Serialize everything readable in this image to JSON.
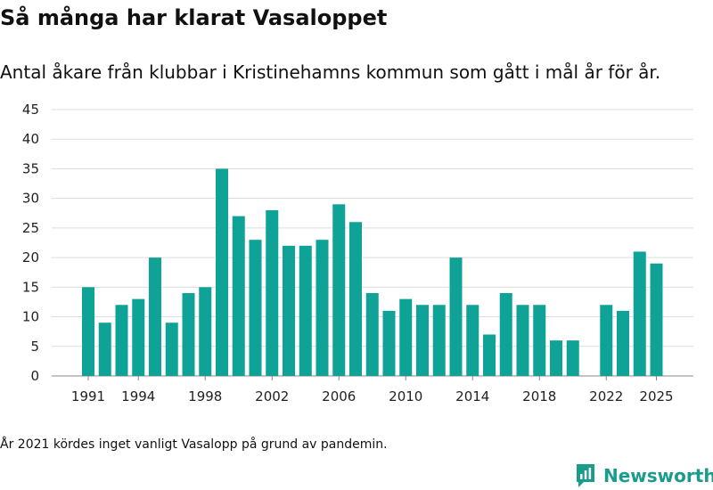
{
  "header": {
    "title": "Så många har klarat Vasaloppet",
    "subtitle": "Antal åkare från klubbar i Kristinehamns kommun som gått i mål år för år."
  },
  "footer": {
    "note": "År 2021 kördes inget vanligt Vasalopp på grund av pandemin.",
    "brand": "Newsworthy"
  },
  "colors": {
    "bar": "#0fa297",
    "grid": "#dddddd",
    "brand": "#1a9c8c"
  },
  "chart_data": {
    "type": "bar",
    "title": "Så många har klarat Vasaloppet",
    "xlabel": "",
    "ylabel": "",
    "ylim": [
      0,
      45
    ],
    "yticks": [
      0,
      5,
      10,
      15,
      20,
      25,
      30,
      35,
      40,
      45
    ],
    "xtick_labels": [
      "1991",
      "1994",
      "1998",
      "2002",
      "2006",
      "2010",
      "2014",
      "2018",
      "2022",
      "2025"
    ],
    "categories": [
      "1991",
      "1992",
      "1993",
      "1994",
      "1995",
      "1996",
      "1997",
      "1998",
      "1999",
      "2000",
      "2001",
      "2002",
      "2003",
      "2004",
      "2005",
      "2006",
      "2007",
      "2008",
      "2009",
      "2010",
      "2011",
      "2012",
      "2013",
      "2014",
      "2015",
      "2016",
      "2017",
      "2018",
      "2019",
      "2020",
      "2021",
      "2022",
      "2023",
      "2024",
      "2025"
    ],
    "values": [
      15,
      9,
      12,
      13,
      20,
      9,
      14,
      15,
      35,
      27,
      23,
      28,
      22,
      22,
      23,
      29,
      26,
      14,
      11,
      13,
      12,
      12,
      20,
      12,
      7,
      14,
      12,
      12,
      6,
      6,
      null,
      12,
      11,
      21,
      19
    ]
  }
}
